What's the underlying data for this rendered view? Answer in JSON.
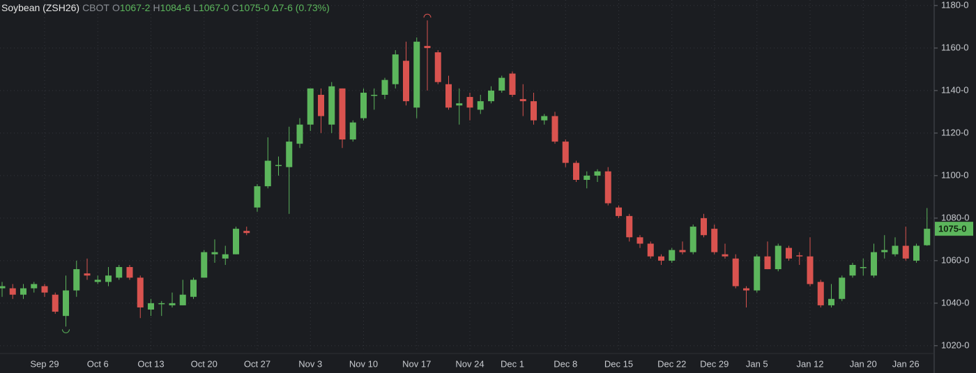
{
  "chart_data": {
    "type": "candlestick",
    "symbol": "Soybean (ZSH26)",
    "exchange": "CBOT",
    "ohlc_header": [
      {
        "key": "O",
        "value": "1067-2"
      },
      {
        "key": "H",
        "value": "1084-6"
      },
      {
        "key": "L",
        "value": "1067-0"
      },
      {
        "key": "C",
        "value": "1075-0"
      }
    ],
    "change": "Δ7-6 (0.73%)",
    "categories": [
      null,
      null,
      null,
      null,
      "Sep 29",
      null,
      null,
      null,
      null,
      "Oct 6",
      null,
      null,
      null,
      null,
      "Oct 13",
      null,
      null,
      null,
      null,
      "Oct 20",
      null,
      null,
      null,
      null,
      "Oct 27",
      null,
      null,
      null,
      null,
      "Nov 3",
      null,
      null,
      null,
      null,
      "Nov 10",
      null,
      null,
      null,
      null,
      "Nov 17",
      null,
      null,
      null,
      null,
      "Nov 24",
      null,
      null,
      null,
      "Dec 1",
      null,
      null,
      null,
      null,
      "Dec 8",
      null,
      null,
      null,
      null,
      "Dec 15",
      null,
      null,
      null,
      null,
      "Dec 22",
      null,
      null,
      null,
      "Dec 29",
      null,
      null,
      null,
      "Jan 5",
      null,
      null,
      null,
      null,
      "Jan 12",
      null,
      null,
      null,
      null,
      "Jan 20",
      null,
      null,
      null,
      "Jan 26",
      null,
      null
    ],
    "open": [
      1047,
      1047,
      1044,
      1047,
      1048,
      1044,
      1034,
      1046,
      1054,
      1050,
      1050,
      1052,
      1057,
      1052,
      1037,
      1040,
      1039,
      1039,
      1043,
      1052,
      1063,
      1061,
      1063,
      1074,
      1085,
      1095,
      1105,
      1104,
      1115,
      1124,
      1138,
      1124,
      1141,
      1117,
      1127,
      1138,
      1138,
      1143,
      1154,
      1132,
      1161,
      1158,
      1143,
      1133,
      1137,
      1131,
      1135,
      1140,
      1148,
      1136,
      1135,
      1126,
      1128,
      1116,
      1106,
      1098,
      1100,
      1102,
      1085,
      1081,
      1071,
      1068,
      1062,
      1060,
      1065,
      1064,
      1080,
      1075,
      1063,
      1061,
      1047,
      1046,
      1062,
      1056,
      1066,
      1062.5,
      1062,
      1050,
      1039,
      1042,
      1053,
      1057,
      1053,
      1064,
      1063,
      1067,
      1060,
      1067.25
    ],
    "high": [
      1050,
      1049,
      1049,
      1050,
      1049,
      1045,
      1053,
      1060,
      1061,
      1053,
      1057,
      1058,
      1058,
      1053,
      1042,
      1041,
      1045,
      1051,
      1052,
      1065,
      1070,
      1067,
      1076,
      1076,
      1096,
      1118,
      1109,
      1123,
      1127,
      1141,
      1141,
      1144,
      1141,
      1126,
      1141,
      1141,
      1146,
      1159,
      1163,
      1165,
      1173,
      1159,
      1147,
      1141,
      1139,
      1138,
      1142,
      1147,
      1149,
      1143,
      1139,
      1129,
      1130,
      1117,
      1107,
      1102,
      1103,
      1104,
      1086,
      1082,
      1072,
      1069,
      1063,
      1066,
      1069,
      1077,
      1082,
      1077,
      1068,
      1063,
      1048,
      1063,
      1069,
      1068,
      1067,
      1064,
      1071,
      1051,
      1049,
      1053,
      1059,
      1061,
      1068,
      1072,
      1071,
      1076,
      1068,
      1084.75
    ],
    "low": [
      1043,
      1042,
      1042,
      1045,
      1043,
      1035,
      1029,
      1043,
      1051,
      1049,
      1048,
      1051,
      1051,
      1033,
      1034,
      1034,
      1038,
      1039,
      1042,
      1052,
      1059,
      1058,
      1063,
      1072,
      1083,
      1094,
      1100,
      1082,
      1113,
      1121,
      1120,
      1120,
      1113,
      1116,
      1126,
      1131,
      1136,
      1141,
      1133,
      1127,
      1140,
      1143,
      1131,
      1124,
      1126,
      1129,
      1134,
      1139,
      1137,
      1128,
      1124,
      1124,
      1115,
      1104,
      1097,
      1094,
      1097,
      1086,
      1080,
      1069,
      1066,
      1061,
      1058,
      1059,
      1063,
      1063,
      1071,
      1063,
      1061,
      1047,
      1038,
      1045,
      1056,
      1055,
      1060,
      1058,
      1048,
      1038,
      1038,
      1041,
      1052,
      1053,
      1052,
      1061,
      1062,
      1060,
      1059,
      1067
    ],
    "close": [
      1048,
      1044,
      1047,
      1049,
      1045,
      1036,
      1046,
      1056,
      1053,
      1051,
      1053,
      1057,
      1052,
      1038,
      1040,
      1040,
      1040,
      1044,
      1051,
      1064,
      1064,
      1063,
      1075,
      1073,
      1095,
      1107,
      1105,
      1116,
      1124,
      1141,
      1128,
      1142,
      1117,
      1125,
      1139,
      1138,
      1145,
      1157,
      1135,
      1163,
      1160,
      1144,
      1132,
      1134,
      1132,
      1135,
      1140,
      1146,
      1138,
      1135,
      1126,
      1128,
      1116,
      1106,
      1098,
      1100,
      1102,
      1087,
      1081,
      1071,
      1068,
      1062,
      1060,
      1065,
      1064,
      1076,
      1072,
      1064,
      1062,
      1048,
      1046,
      1062,
      1056,
      1067,
      1061,
      1062,
      1049,
      1039,
      1042,
      1052,
      1058,
      1057,
      1064,
      1065,
      1067,
      1061,
      1067,
      1075
    ],
    "up_color": "#5cb65c",
    "down_color": "#d9534f",
    "ylim": [
      1017,
      1182.6
    ],
    "yticks": [
      {
        "value": 1020,
        "label": "1020-0"
      },
      {
        "value": 1040,
        "label": "1040-0"
      },
      {
        "value": 1060,
        "label": "1060-0"
      },
      {
        "value": 1080,
        "label": "1080-0"
      },
      {
        "value": 1100,
        "label": "1100-0"
      },
      {
        "value": 1120,
        "label": "1120-0"
      },
      {
        "value": 1140,
        "label": "1140-0"
      },
      {
        "value": 1160,
        "label": "1160-0"
      },
      {
        "value": 1180,
        "label": "1180-0"
      }
    ],
    "last_price": {
      "value": 1075,
      "label": "1075-0"
    },
    "grid": true
  }
}
